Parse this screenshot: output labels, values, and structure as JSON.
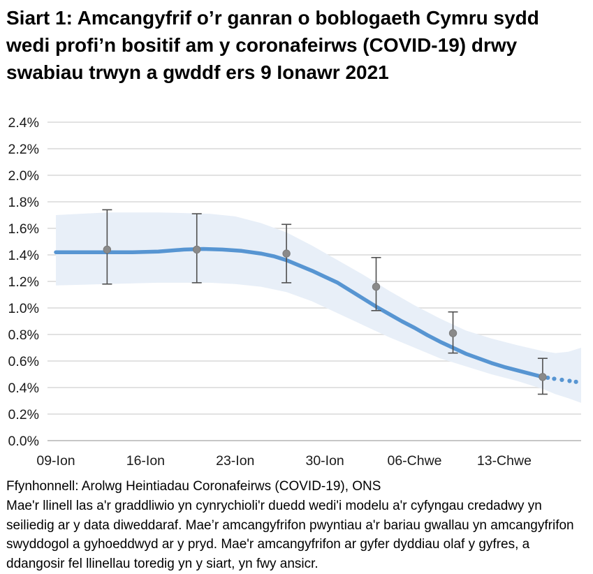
{
  "header": {
    "title": "Siart 1: Amcangyfrif o’r ganran o boblogaeth Cymru sydd wedi profi’n bositif am y coronafeirws (COVID-19) drwy swabiau trwyn a gwddf ers 9 Ionawr 2021"
  },
  "footer": {
    "source": "Ffynhonnell: Arolwg Heintiadau Coronafeirws (COVID-19), ONS",
    "note": "Mae'r llinell las a'r graddliwio yn cynrychioli'r duedd wedi'i modelu a'r cyfyngau credadwy yn seiliedig ar y data diweddaraf. Mae’r amcangyfrifon pwyntiau a'r bariau gwallau yn amcangyfrifon swyddogol a gyhoeddwyd ar y pryd. Mae'r amcangyfrifon ar gyfer dyddiau olaf y gyfres, a ddangosir fel llinellau toredig yn y siart, yn fwy ansicr."
  },
  "colors": {
    "trend_line": "#5795D2",
    "band": "#E8EFF8",
    "gridline": "#E2E2E2",
    "axis_line": "#C6C6C6",
    "point": "#8A8A8A",
    "error_bar": "#4F4F4F",
    "tick_text": "#1A1A1A"
  },
  "chart_data": {
    "type": "line",
    "title": "Modelled trend of percentage testing positive for COVID-19 in Wales since 9 January 2021",
    "x_unit": "days since 09-Ion (9 Ionawr 2021)",
    "xlabel": "",
    "ylabel": "",
    "ylim": [
      0.0,
      2.4
    ],
    "xlim_days": [
      -0.65,
      41
    ],
    "grid": "horizontal",
    "legend": "none",
    "y_tick_labels": [
      "0.0%",
      "0.2%",
      "0.4%",
      "0.6%",
      "0.8%",
      "1.0%",
      "1.2%",
      "1.4%",
      "1.6%",
      "1.8%",
      "2.0%",
      "2.2%",
      "2.4%"
    ],
    "x_tick_labels": [
      "09-Ion",
      "16-Ion",
      "23-Ion",
      "30-Ion",
      "06-Chwe",
      "13-Chwe"
    ],
    "x_tick_days": [
      0,
      7,
      14,
      21,
      28,
      35
    ],
    "modelled_trend": {
      "x_days": [
        0,
        2,
        4,
        6,
        8,
        10,
        11.5,
        13,
        14.5,
        16,
        17,
        18,
        19,
        20,
        21,
        22,
        23,
        24,
        25,
        26,
        27,
        28,
        29,
        30,
        31,
        32,
        33,
        34,
        35,
        36,
        37,
        38
      ],
      "y_pct": [
        1.42,
        1.42,
        1.42,
        1.42,
        1.425,
        1.44,
        1.445,
        1.44,
        1.43,
        1.41,
        1.39,
        1.36,
        1.32,
        1.28,
        1.235,
        1.19,
        1.13,
        1.07,
        1.01,
        0.955,
        0.9,
        0.85,
        0.795,
        0.745,
        0.7,
        0.655,
        0.62,
        0.585,
        0.555,
        0.53,
        0.505,
        0.48
      ]
    },
    "modelled_trend_dotted": {
      "x_days": [
        38.4,
        38.9,
        39.5,
        40.1,
        40.6
      ],
      "y_pct": [
        0.474,
        0.466,
        0.458,
        0.45,
        0.443
      ]
    },
    "credible_interval_band": {
      "x_days": [
        0,
        4,
        8,
        12,
        14,
        16,
        18,
        20,
        22,
        24,
        26,
        28,
        30,
        32,
        34,
        36,
        38,
        39,
        40,
        41
      ],
      "upper_pct": [
        1.7,
        1.72,
        1.72,
        1.71,
        1.69,
        1.64,
        1.57,
        1.47,
        1.36,
        1.25,
        1.13,
        1.02,
        0.92,
        0.83,
        0.77,
        0.72,
        0.675,
        0.66,
        0.67,
        0.7
      ],
      "lower_pct": [
        1.17,
        1.18,
        1.19,
        1.19,
        1.18,
        1.16,
        1.12,
        1.05,
        0.96,
        0.87,
        0.78,
        0.7,
        0.62,
        0.56,
        0.5,
        0.45,
        0.39,
        0.35,
        0.32,
        0.285
      ]
    },
    "point_estimates": {
      "x_days": [
        4,
        11,
        18,
        25,
        31,
        38
      ],
      "value_pct": [
        1.44,
        1.44,
        1.41,
        1.16,
        0.81,
        0.48
      ],
      "lower_pct": [
        1.18,
        1.19,
        1.19,
        0.98,
        0.66,
        0.35
      ],
      "upper_pct": [
        1.74,
        1.71,
        1.63,
        1.38,
        0.97,
        0.62
      ]
    }
  }
}
